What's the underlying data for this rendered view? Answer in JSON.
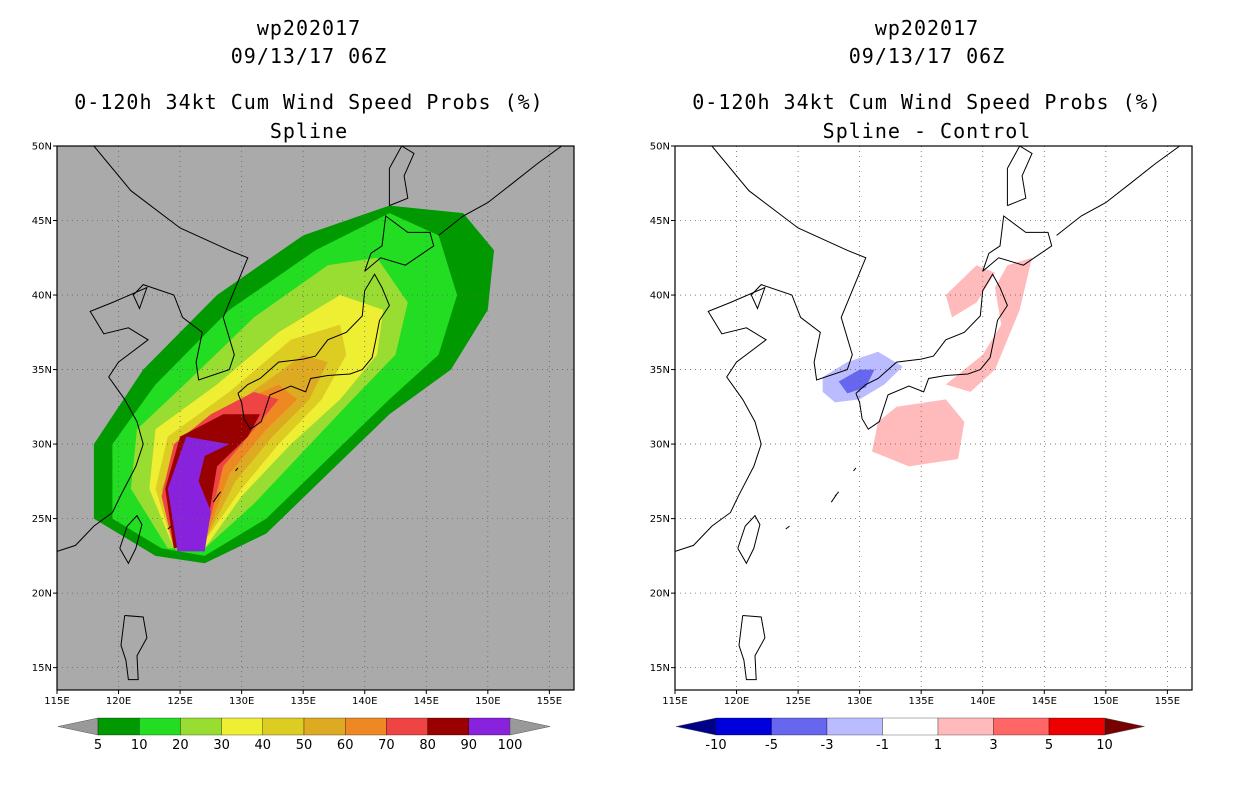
{
  "panels": [
    {
      "title_lines": [
        "wp202017",
        "09/13/17 06Z",
        "0-120h 34kt Cum Wind Speed Probs (%)",
        "Spline"
      ],
      "map_background": "#aaaaaa",
      "colorbar": {
        "labels": [
          "5",
          "10",
          "20",
          "30",
          "40",
          "50",
          "60",
          "70",
          "80",
          "90",
          "100"
        ],
        "colors": [
          "#009900",
          "#22dd22",
          "#99dd33",
          "#eeee33",
          "#ddcc22",
          "#ddaa22",
          "#ee8822",
          "#ee4444",
          "#990000",
          "#8822dd"
        ],
        "end_left": "#999999",
        "end_right": "#999999"
      }
    },
    {
      "title_lines": [
        "wp202017",
        "09/13/17 06Z",
        "0-120h 34kt Cum Wind Speed Probs (%)",
        "Spline - Control"
      ],
      "map_background": "#ffffff",
      "colorbar": {
        "labels": [
          "-10",
          "-5",
          "-3",
          "-1",
          "1",
          "3",
          "5",
          "10"
        ],
        "colors": [
          "#0000dd",
          "#6666ee",
          "#bbbbff",
          "#ffffff",
          "#ffbbbb",
          "#ff6666",
          "#ee0000"
        ],
        "end_left": "#000088",
        "end_right": "#770000"
      }
    }
  ],
  "chart_data": [
    {
      "type": "heatmap",
      "title": "wp202017 09/13/17 06Z 0-120h 34kt Cum Wind Speed Probs (%) Spline",
      "x_range": [
        115,
        157
      ],
      "y_range": [
        13.5,
        50
      ],
      "xticks": [
        "115E",
        "120E",
        "125E",
        "130E",
        "135E",
        "140E",
        "145E",
        "150E",
        "155E"
      ],
      "yticks": [
        "15N",
        "20N",
        "25N",
        "30N",
        "35N",
        "40N",
        "45N",
        "50N"
      ],
      "levels": [
        5,
        10,
        20,
        30,
        40,
        50,
        60,
        70,
        80,
        90,
        100
      ],
      "contours": [
        {
          "level": 5,
          "outline": [
            [
              123,
              22.5
            ],
            [
              127,
              22
            ],
            [
              132,
              24
            ],
            [
              137,
              28
            ],
            [
              142,
              32
            ],
            [
              147,
              35
            ],
            [
              150,
              39
            ],
            [
              150.5,
              43
            ],
            [
              148,
              45.5
            ],
            [
              142,
              46
            ],
            [
              135,
              44
            ],
            [
              128,
              40
            ],
            [
              122,
              35
            ],
            [
              118,
              30
            ],
            [
              118,
              25
            ]
          ]
        },
        {
          "level": 10,
          "outline": [
            [
              123.5,
              23
            ],
            [
              127,
              22.5
            ],
            [
              132,
              25
            ],
            [
              137,
              29
            ],
            [
              142,
              33
            ],
            [
              146,
              36
            ],
            [
              147.5,
              40
            ],
            [
              146,
              44
            ],
            [
              142,
              45.5
            ],
            [
              136,
              43
            ],
            [
              129,
              39
            ],
            [
              123,
              34
            ],
            [
              119.5,
              30
            ],
            [
              119.5,
              25
            ]
          ]
        },
        {
          "level": 20,
          "outline": [
            [
              124,
              23
            ],
            [
              127,
              23
            ],
            [
              131,
              26
            ],
            [
              135,
              29.5
            ],
            [
              139,
              33
            ],
            [
              142.5,
              36
            ],
            [
              143.5,
              39.5
            ],
            [
              141,
              42.5
            ],
            [
              137,
              42
            ],
            [
              131,
              38.5
            ],
            [
              126,
              34.5
            ],
            [
              121.5,
              31
            ],
            [
              121,
              27
            ]
          ]
        },
        {
          "level": 30,
          "outline": [
            [
              124.5,
              23
            ],
            [
              127,
              23
            ],
            [
              130,
              26.5
            ],
            [
              134,
              30
            ],
            [
              138,
              33
            ],
            [
              141,
              36
            ],
            [
              141.5,
              39
            ],
            [
              138,
              40
            ],
            [
              133,
              37.5
            ],
            [
              128,
              34
            ],
            [
              123,
              31
            ],
            [
              122.5,
              27
            ]
          ]
        },
        {
          "level": 40,
          "outline": [
            [
              124.5,
              23
            ],
            [
              127,
              23.5
            ],
            [
              130,
              27
            ],
            [
              133,
              30
            ],
            [
              136.5,
              33
            ],
            [
              138.5,
              36
            ],
            [
              138,
              38
            ],
            [
              134,
              37
            ],
            [
              129,
              33.5
            ],
            [
              124,
              30.5
            ],
            [
              123,
              27
            ]
          ]
        },
        {
          "level": 50,
          "outline": [
            [
              124.5,
              23
            ],
            [
              127,
              23.5
            ],
            [
              129.5,
              27.5
            ],
            [
              132.5,
              30.5
            ],
            [
              135.5,
              33
            ],
            [
              137,
              35.5
            ],
            [
              135,
              36
            ],
            [
              130,
              33
            ],
            [
              125,
              30
            ],
            [
              123.5,
              27
            ]
          ]
        },
        {
          "level": 60,
          "outline": [
            [
              124.5,
              23
            ],
            [
              127,
              23.5
            ],
            [
              129,
              28
            ],
            [
              132,
              31
            ],
            [
              134.5,
              33
            ],
            [
              133,
              34
            ],
            [
              129,
              32.5
            ],
            [
              125,
              30
            ],
            [
              123.5,
              26.5
            ]
          ]
        },
        {
          "level": 70,
          "outline": [
            [
              124.5,
              23
            ],
            [
              127,
              23.5
            ],
            [
              128.5,
              28.5
            ],
            [
              131,
              31
            ],
            [
              133,
              33
            ],
            [
              131,
              33.5
            ],
            [
              127.5,
              32
            ],
            [
              124.5,
              30
            ],
            [
              123.5,
              26.5
            ]
          ]
        },
        {
          "level": 80,
          "outline": [
            [
              124.5,
              23
            ],
            [
              127,
              23.5
            ],
            [
              128,
              28.5
            ],
            [
              130.5,
              30.5
            ],
            [
              131.5,
              32
            ],
            [
              128.5,
              32
            ],
            [
              125,
              30.5
            ],
            [
              123.8,
              27
            ]
          ]
        },
        {
          "level": 90,
          "outline": [
            [
              124.8,
              22.8
            ],
            [
              127,
              22.8
            ],
            [
              127.5,
              25.5
            ],
            [
              126.5,
              27.5
            ],
            [
              127,
              29.2
            ],
            [
              129,
              30
            ],
            [
              125.5,
              30.5
            ],
            [
              124,
              27
            ]
          ]
        }
      ]
    },
    {
      "type": "heatmap",
      "title": "wp202017 09/13/17 06Z 0-120h 34kt Cum Wind Speed Probs (%) Spline - Control",
      "x_range": [
        115,
        157
      ],
      "y_range": [
        13.5,
        50
      ],
      "xticks": [
        "115E",
        "120E",
        "125E",
        "130E",
        "135E",
        "140E",
        "145E",
        "150E",
        "155E"
      ],
      "yticks": [
        "15N",
        "20N",
        "25N",
        "30N",
        "35N",
        "40N",
        "45N",
        "50N"
      ],
      "levels": [
        -10,
        -5,
        -3,
        -1,
        1,
        3,
        5,
        10
      ],
      "contours": [
        {
          "level": 1,
          "outline": [
            [
              131,
              29.5
            ],
            [
              134,
              28.5
            ],
            [
              138,
              29
            ],
            [
              138.5,
              31.5
            ],
            [
              137,
              33
            ],
            [
              133,
              32.5
            ],
            [
              131.5,
              31.5
            ]
          ]
        },
        {
          "level": 1,
          "outline": [
            [
              137,
              34
            ],
            [
              140,
              36
            ],
            [
              141.5,
              38
            ],
            [
              141,
              40.5
            ],
            [
              142,
              42
            ],
            [
              144,
              42.5
            ],
            [
              143,
              39
            ],
            [
              141,
              35
            ],
            [
              139,
              33.5
            ]
          ]
        },
        {
          "level": 1,
          "outline": [
            [
              137.5,
              38.5
            ],
            [
              139.5,
              39.5
            ],
            [
              141,
              41.5
            ],
            [
              139.5,
              42
            ],
            [
              137,
              40
            ]
          ]
        },
        {
          "level": -1,
          "outline": [
            [
              127,
              34.5
            ],
            [
              129,
              35.5
            ],
            [
              131.5,
              36.2
            ],
            [
              133.5,
              35.2
            ],
            [
              132,
              34
            ],
            [
              130,
              33
            ],
            [
              128,
              32.8
            ],
            [
              127,
              33.5
            ]
          ]
        },
        {
          "level": -3,
          "outline": [
            [
              128.3,
              34.2
            ],
            [
              130,
              35
            ],
            [
              131.2,
              35
            ],
            [
              130.5,
              33.8
            ],
            [
              129,
              33.4
            ]
          ]
        }
      ]
    }
  ]
}
